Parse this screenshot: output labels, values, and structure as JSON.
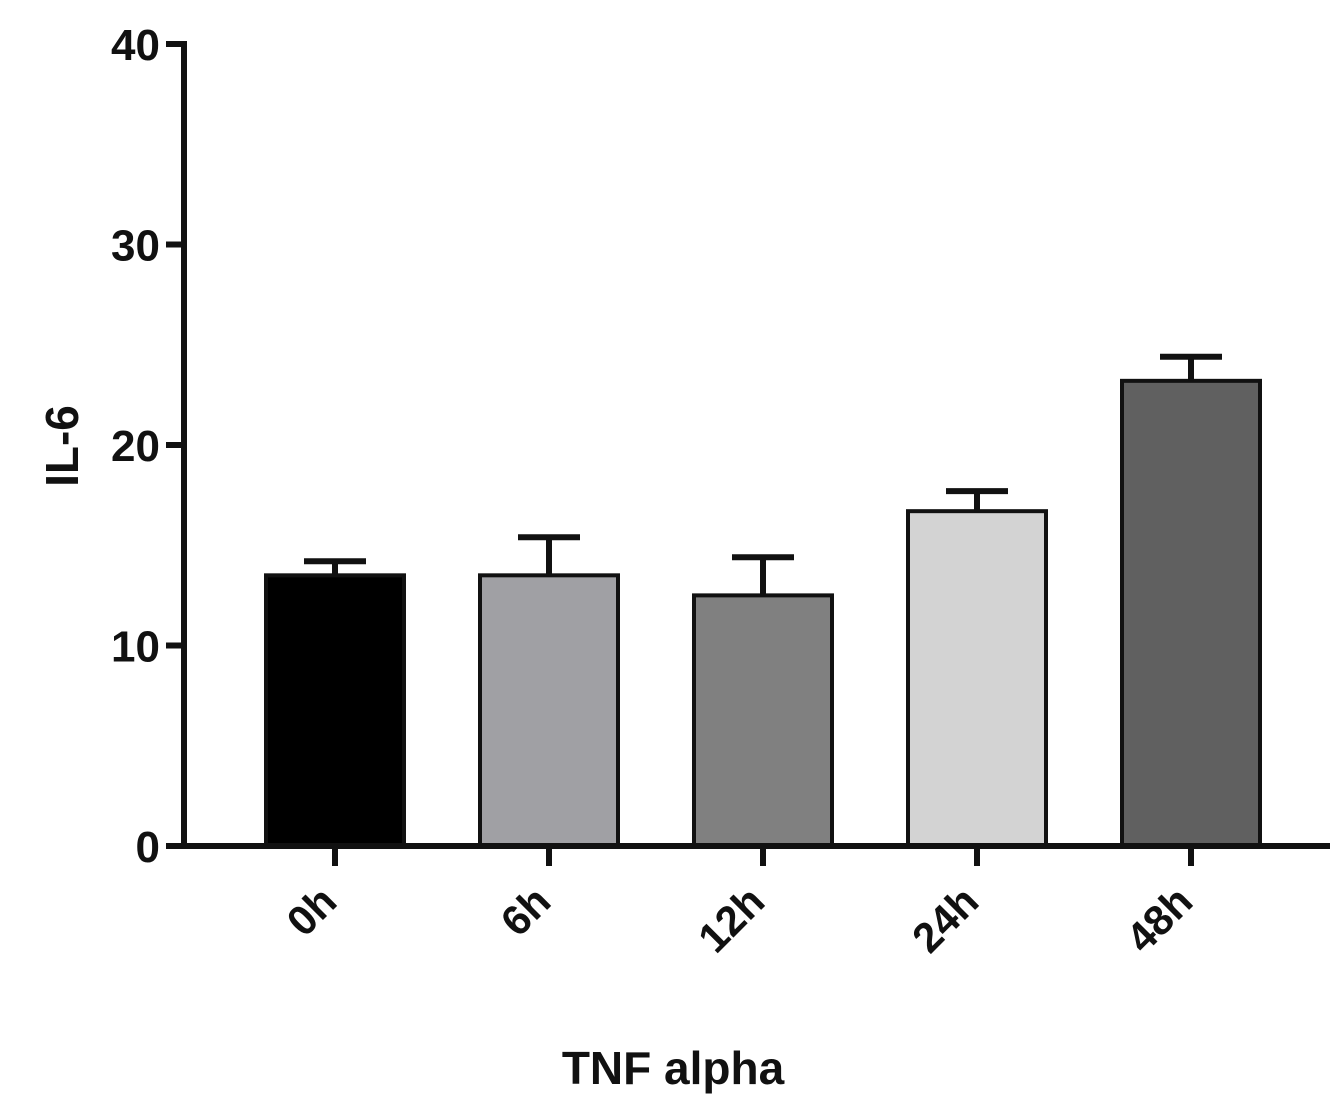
{
  "chart_data": {
    "type": "bar",
    "categories": [
      "0h",
      "6h",
      "12h",
      "24h",
      "48h"
    ],
    "values": [
      13.5,
      13.5,
      12.5,
      16.7,
      23.2
    ],
    "errors": [
      0.7,
      1.9,
      1.9,
      1.0,
      1.2
    ],
    "colors": [
      "#000000",
      "#a0a0a4",
      "#808080",
      "#d3d3d3",
      "#606060"
    ],
    "xlabel": "TNF alpha",
    "ylabel": "IL-6",
    "ylim": [
      0,
      40
    ],
    "yticks": [
      0,
      10,
      20,
      30,
      40
    ],
    "grid": false,
    "legend": "none"
  }
}
